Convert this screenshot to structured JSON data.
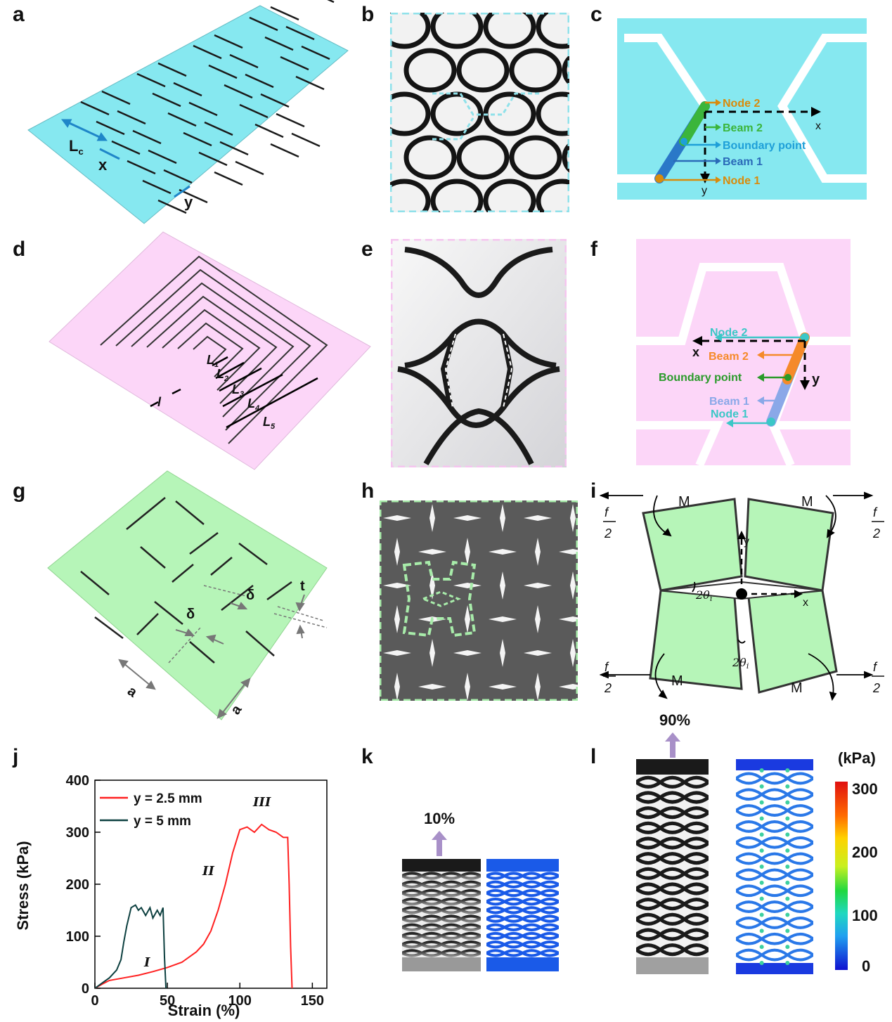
{
  "panel_labels": {
    "a": "a",
    "b": "b",
    "c": "c",
    "d": "d",
    "e": "e",
    "f": "f",
    "g": "g",
    "h": "h",
    "i": "i",
    "j": "j",
    "k": "k",
    "l": "l"
  },
  "panel_a": {
    "lc": "L",
    "lc_sub": "c",
    "x": "x",
    "y": "y"
  },
  "panel_c": {
    "node2": "Node 2",
    "beam2": "Beam 2",
    "boundary": "Boundary point",
    "beam1": "Beam 1",
    "node1": "Node 1",
    "x": "x",
    "y": "y"
  },
  "panel_d": {
    "l1": "L",
    "l1s": "1",
    "l2": "L",
    "l2s": "2",
    "l3": "L",
    "l3s": "3",
    "l4": "L",
    "l4s": "4",
    "l5": "L",
    "l5s": "5",
    "l": "l"
  },
  "panel_f": {
    "node2": "Node 2",
    "beam2": "Beam 2",
    "boundary": "Boundary point",
    "beam1": "Beam 1",
    "node1": "Node 1",
    "x": "x",
    "y": "y"
  },
  "panel_g": {
    "delta": "δ",
    "t": "t",
    "a": "a"
  },
  "panel_i": {
    "m": "M",
    "f": "f",
    "two": "2",
    "theta": "2θ",
    "theta_sub": "i",
    "x": "x",
    "y": "y"
  },
  "panel_k": {
    "strain": "10%"
  },
  "panel_l": {
    "strain": "90%",
    "unit": "(kPa)",
    "ticks": [
      "300",
      "200",
      "100",
      "0"
    ]
  },
  "colors": {
    "cyan": "#86e8f0",
    "pink": "#fcd6f8",
    "green": "#b6f5b8",
    "red": "#ff2020",
    "teal": "#0d4040"
  },
  "chart_data": {
    "type": "line",
    "xlabel": "Strain (%)",
    "ylabel": "Stress (kPa)",
    "xlim": [
      0,
      160
    ],
    "ylim": [
      0,
      400
    ],
    "xticks": [
      "0",
      "50",
      "100",
      "150"
    ],
    "yticks": [
      "0",
      "100",
      "200",
      "300",
      "400"
    ],
    "legend_position": "top-left",
    "annotations": [
      "I",
      "II",
      "III"
    ],
    "series": [
      {
        "name": "y = 2.5 mm",
        "color": "#ff2020",
        "x": [
          0,
          5,
          10,
          20,
          30,
          40,
          50,
          60,
          70,
          75,
          80,
          85,
          90,
          95,
          100,
          105,
          110,
          115,
          120,
          125,
          130,
          133,
          134,
          135,
          136
        ],
        "y": [
          0,
          8,
          15,
          20,
          25,
          32,
          40,
          50,
          70,
          85,
          110,
          150,
          200,
          260,
          305,
          310,
          300,
          315,
          305,
          300,
          290,
          290,
          200,
          80,
          0
        ]
      },
      {
        "name": "y = 5 mm",
        "color": "#0d4040",
        "x": [
          0,
          5,
          10,
          15,
          18,
          20,
          22,
          25,
          28,
          30,
          32,
          35,
          38,
          40,
          43,
          45,
          47,
          48,
          49
        ],
        "y": [
          0,
          10,
          20,
          35,
          55,
          90,
          120,
          155,
          160,
          150,
          155,
          140,
          155,
          135,
          150,
          140,
          155,
          60,
          0
        ]
      }
    ]
  }
}
